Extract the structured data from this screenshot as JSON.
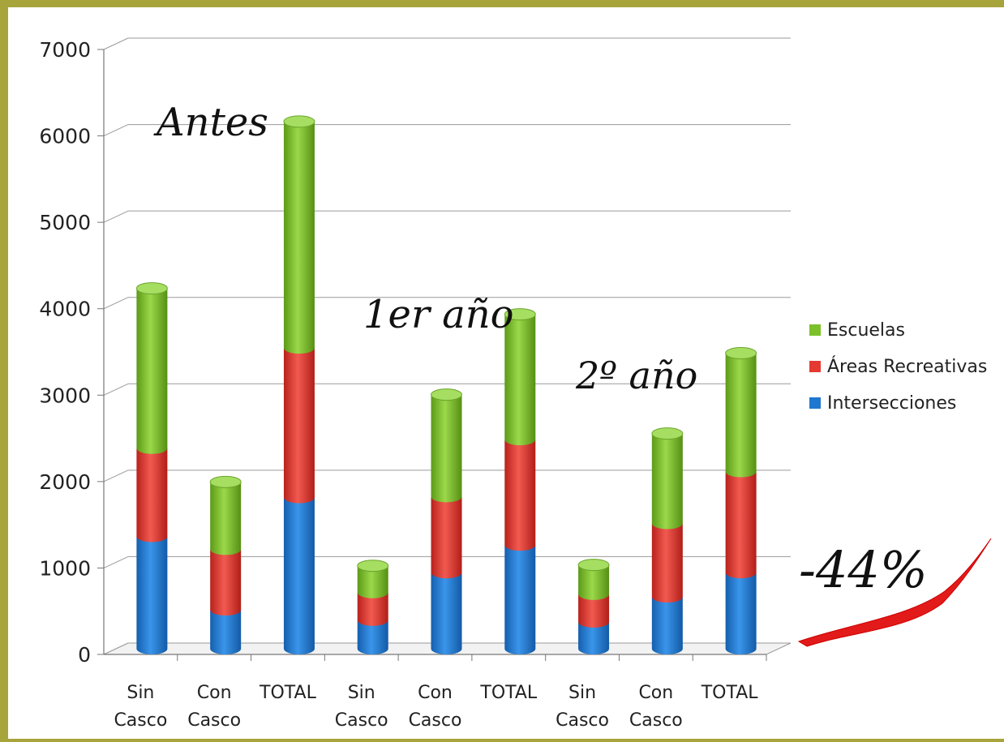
{
  "chart_data": {
    "type": "bar",
    "stacked": true,
    "categories": [
      [
        "Sin",
        "Casco"
      ],
      [
        "Con",
        "Casco"
      ],
      [
        "TOTAL"
      ],
      [
        "Sin",
        "Casco"
      ],
      [
        "Con",
        "Casco"
      ],
      [
        "TOTAL"
      ],
      [
        "Sin",
        "Casco"
      ],
      [
        "Con",
        "Casco"
      ],
      [
        "TOTAL"
      ]
    ],
    "series": [
      {
        "name": "Intersecciones",
        "color": "#1f77d0",
        "values": [
          1300,
          450,
          1750,
          330,
          880,
          1200,
          310,
          600,
          880
        ]
      },
      {
        "name": "Áreas Recreativas",
        "color": "#e53a32",
        "values": [
          1020,
          700,
          1730,
          320,
          880,
          1220,
          320,
          850,
          1170
        ]
      },
      {
        "name": "Escuelas",
        "color": "#7cc12a",
        "values": [
          1850,
          780,
          2620,
          310,
          1180,
          1450,
          340,
          1040,
          1370
        ]
      }
    ],
    "ylim": [
      0,
      7000
    ],
    "yticks": [
      0,
      1000,
      2000,
      3000,
      4000,
      5000,
      6000,
      7000
    ],
    "grid": true,
    "legend": "right",
    "annotations": [
      {
        "text": "Antes"
      },
      {
        "text": "1er año"
      },
      {
        "text": "2º año"
      },
      {
        "text": "-44%"
      }
    ]
  }
}
